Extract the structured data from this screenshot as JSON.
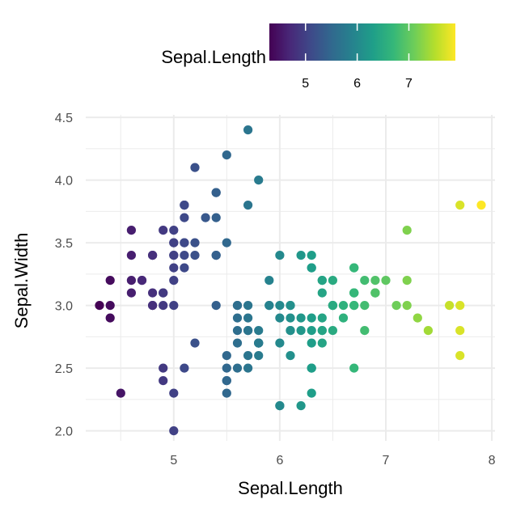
{
  "chart_data": {
    "type": "scatter",
    "xlabel": "Sepal.Length",
    "ylabel": "Sepal.Width",
    "xlim": [
      4.17,
      8.03
    ],
    "ylim": [
      1.92,
      4.52
    ],
    "x_ticks": [
      5,
      6,
      7,
      8
    ],
    "x_tick_labels": [
      "5",
      "6",
      "7",
      "8"
    ],
    "y_ticks": [
      2.0,
      2.5,
      3.0,
      3.5,
      4.0,
      4.5
    ],
    "y_tick_labels": [
      "2.0",
      "2.5",
      "3.0",
      "3.5",
      "4.0",
      "4.5"
    ],
    "grid": true,
    "legend": {
      "title": "Sepal.Length",
      "placement": "top",
      "type": "colorbar",
      "palette": "viridis",
      "range": [
        4.3,
        7.9
      ],
      "ticks": [
        5,
        6,
        7
      ],
      "tick_labels": [
        "5",
        "6",
        "7"
      ]
    },
    "color_variable": "Sepal.Length",
    "points": [
      [
        5.1,
        3.5
      ],
      [
        4.9,
        3.0
      ],
      [
        4.7,
        3.2
      ],
      [
        4.6,
        3.1
      ],
      [
        5.0,
        3.6
      ],
      [
        5.4,
        3.9
      ],
      [
        4.6,
        3.4
      ],
      [
        5.0,
        3.4
      ],
      [
        4.4,
        2.9
      ],
      [
        4.9,
        3.1
      ],
      [
        5.4,
        3.7
      ],
      [
        4.8,
        3.4
      ],
      [
        4.8,
        3.0
      ],
      [
        4.3,
        3.0
      ],
      [
        5.8,
        4.0
      ],
      [
        5.7,
        4.4
      ],
      [
        5.4,
        3.9
      ],
      [
        5.1,
        3.5
      ],
      [
        5.7,
        3.8
      ],
      [
        5.1,
        3.8
      ],
      [
        5.4,
        3.4
      ],
      [
        5.1,
        3.7
      ],
      [
        4.6,
        3.6
      ],
      [
        5.1,
        3.3
      ],
      [
        4.8,
        3.4
      ],
      [
        5.0,
        3.0
      ],
      [
        5.0,
        3.4
      ],
      [
        5.2,
        3.5
      ],
      [
        5.2,
        3.4
      ],
      [
        4.7,
        3.2
      ],
      [
        4.8,
        3.1
      ],
      [
        5.4,
        3.4
      ],
      [
        5.2,
        4.1
      ],
      [
        5.5,
        4.2
      ],
      [
        4.9,
        3.1
      ],
      [
        5.0,
        3.2
      ],
      [
        5.5,
        3.5
      ],
      [
        4.9,
        3.6
      ],
      [
        4.4,
        3.0
      ],
      [
        5.1,
        3.4
      ],
      [
        5.0,
        3.5
      ],
      [
        4.5,
        2.3
      ],
      [
        4.4,
        3.2
      ],
      [
        5.0,
        3.5
      ],
      [
        5.1,
        3.8
      ],
      [
        4.8,
        3.0
      ],
      [
        5.1,
        3.8
      ],
      [
        4.6,
        3.2
      ],
      [
        5.3,
        3.7
      ],
      [
        5.0,
        3.3
      ],
      [
        7.0,
        3.2
      ],
      [
        6.4,
        3.2
      ],
      [
        6.9,
        3.1
      ],
      [
        5.5,
        2.3
      ],
      [
        6.5,
        2.8
      ],
      [
        5.7,
        2.8
      ],
      [
        6.3,
        3.3
      ],
      [
        4.9,
        2.4
      ],
      [
        6.6,
        2.9
      ],
      [
        5.2,
        2.7
      ],
      [
        5.0,
        2.0
      ],
      [
        5.9,
        3.0
      ],
      [
        6.0,
        2.2
      ],
      [
        6.1,
        2.9
      ],
      [
        5.6,
        2.9
      ],
      [
        6.7,
        3.1
      ],
      [
        5.6,
        3.0
      ],
      [
        5.8,
        2.7
      ],
      [
        6.2,
        2.2
      ],
      [
        5.6,
        2.5
      ],
      [
        5.9,
        3.2
      ],
      [
        6.1,
        2.8
      ],
      [
        6.3,
        2.5
      ],
      [
        6.1,
        2.8
      ],
      [
        6.4,
        2.9
      ],
      [
        6.6,
        3.0
      ],
      [
        6.8,
        2.8
      ],
      [
        6.7,
        3.0
      ],
      [
        6.0,
        2.9
      ],
      [
        5.7,
        2.6
      ],
      [
        5.5,
        2.4
      ],
      [
        5.5,
        2.4
      ],
      [
        5.8,
        2.7
      ],
      [
        6.0,
        2.7
      ],
      [
        5.4,
        3.0
      ],
      [
        6.0,
        3.4
      ],
      [
        6.7,
        3.1
      ],
      [
        6.3,
        2.3
      ],
      [
        5.6,
        3.0
      ],
      [
        5.5,
        2.5
      ],
      [
        5.5,
        2.6
      ],
      [
        6.1,
        3.0
      ],
      [
        5.8,
        2.6
      ],
      [
        5.0,
        2.3
      ],
      [
        5.6,
        2.7
      ],
      [
        5.7,
        3.0
      ],
      [
        5.7,
        2.9
      ],
      [
        6.2,
        2.9
      ],
      [
        5.1,
        2.5
      ],
      [
        5.7,
        2.8
      ],
      [
        6.3,
        3.3
      ],
      [
        5.8,
        2.7
      ],
      [
        7.1,
        3.0
      ],
      [
        6.3,
        2.9
      ],
      [
        6.5,
        3.0
      ],
      [
        7.6,
        3.0
      ],
      [
        4.9,
        2.5
      ],
      [
        7.3,
        2.9
      ],
      [
        6.7,
        2.5
      ],
      [
        7.2,
        3.6
      ],
      [
        6.5,
        3.2
      ],
      [
        6.4,
        2.7
      ],
      [
        6.8,
        3.0
      ],
      [
        5.7,
        2.5
      ],
      [
        5.8,
        2.8
      ],
      [
        6.4,
        3.2
      ],
      [
        6.5,
        3.0
      ],
      [
        7.7,
        3.8
      ],
      [
        7.7,
        2.6
      ],
      [
        6.0,
        2.2
      ],
      [
        6.9,
        3.2
      ],
      [
        5.6,
        2.8
      ],
      [
        7.7,
        2.8
      ],
      [
        6.3,
        2.7
      ],
      [
        6.7,
        3.3
      ],
      [
        7.2,
        3.2
      ],
      [
        6.2,
        2.8
      ],
      [
        6.1,
        3.0
      ],
      [
        6.4,
        2.8
      ],
      [
        7.2,
        3.0
      ],
      [
        7.4,
        2.8
      ],
      [
        7.9,
        3.8
      ],
      [
        6.4,
        2.8
      ],
      [
        6.3,
        2.8
      ],
      [
        6.1,
        2.6
      ],
      [
        7.7,
        3.0
      ],
      [
        6.3,
        3.4
      ],
      [
        6.4,
        3.1
      ],
      [
        6.0,
        3.0
      ],
      [
        6.9,
        3.1
      ],
      [
        6.7,
        3.1
      ],
      [
        6.9,
        3.1
      ],
      [
        5.8,
        2.7
      ],
      [
        6.8,
        3.2
      ],
      [
        6.7,
        3.3
      ],
      [
        6.7,
        3.0
      ],
      [
        6.3,
        2.5
      ],
      [
        6.5,
        3.0
      ],
      [
        6.2,
        3.4
      ],
      [
        5.9,
        3.0
      ]
    ],
    "colors": {
      "gradient": [
        "#440154",
        "#482878",
        "#3E4989",
        "#31688E",
        "#26828E",
        "#1F9E89",
        "#35B779",
        "#6DCD59",
        "#B4DE2C",
        "#FDE725"
      ],
      "grid": "#ebebeb",
      "tick_text": "#4d4d4d",
      "title_text": "#000000"
    }
  }
}
